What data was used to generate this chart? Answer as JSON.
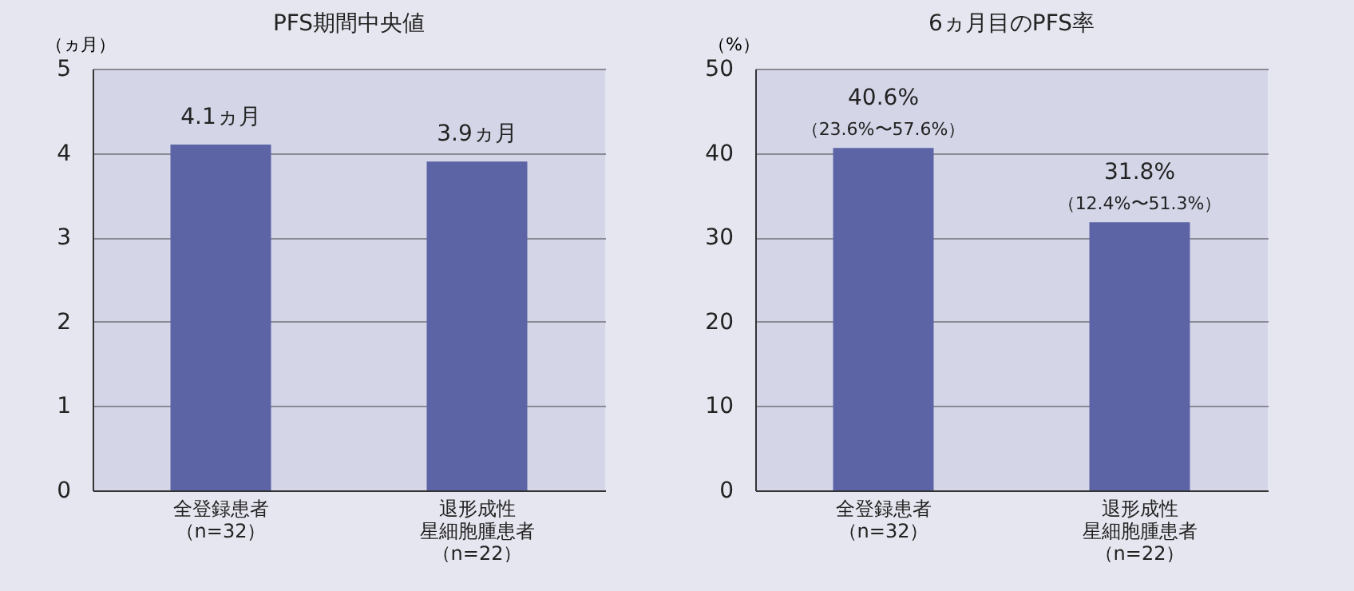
{
  "chart_data": [
    {
      "type": "bar",
      "title": "PFS期間中央値",
      "ylabel": "（ヵ月）",
      "categories": [
        "全登録患者（n=32）",
        "退形成性星細胞腫患者（n=22）"
      ],
      "values": [
        4.1,
        3.9
      ],
      "value_labels": [
        "4.1ヵ月",
        "3.9ヵ月"
      ],
      "color": "#5c64a6",
      "ylim": [
        0,
        5
      ],
      "yticks": [
        0,
        1,
        2,
        3,
        4,
        5
      ],
      "grid": "y",
      "legend": false
    },
    {
      "type": "bar",
      "title": "6ヵ月目のPFS率",
      "ylabel": "（%）",
      "categories": [
        "全登録患者（n=32）",
        "退形成性星細胞腫患者（n=22）"
      ],
      "values": [
        40.6,
        31.8
      ],
      "value_labels": [
        "40.6%",
        "31.8%"
      ],
      "annotations": [
        {
          "text": "（23.6%〜57.6%）",
          "x": "全登録患者（n=32）",
          "y": 40.6
        },
        {
          "text": "（12.4%〜51.3%）",
          "x": "退形成性星細胞腫患者（n=22）",
          "y": 31.8
        }
      ],
      "color": "#5c64a6",
      "ylim": [
        0,
        50
      ],
      "yticks": [
        0,
        10,
        20,
        30,
        40,
        50
      ],
      "grid": "y",
      "legend": false
    }
  ]
}
